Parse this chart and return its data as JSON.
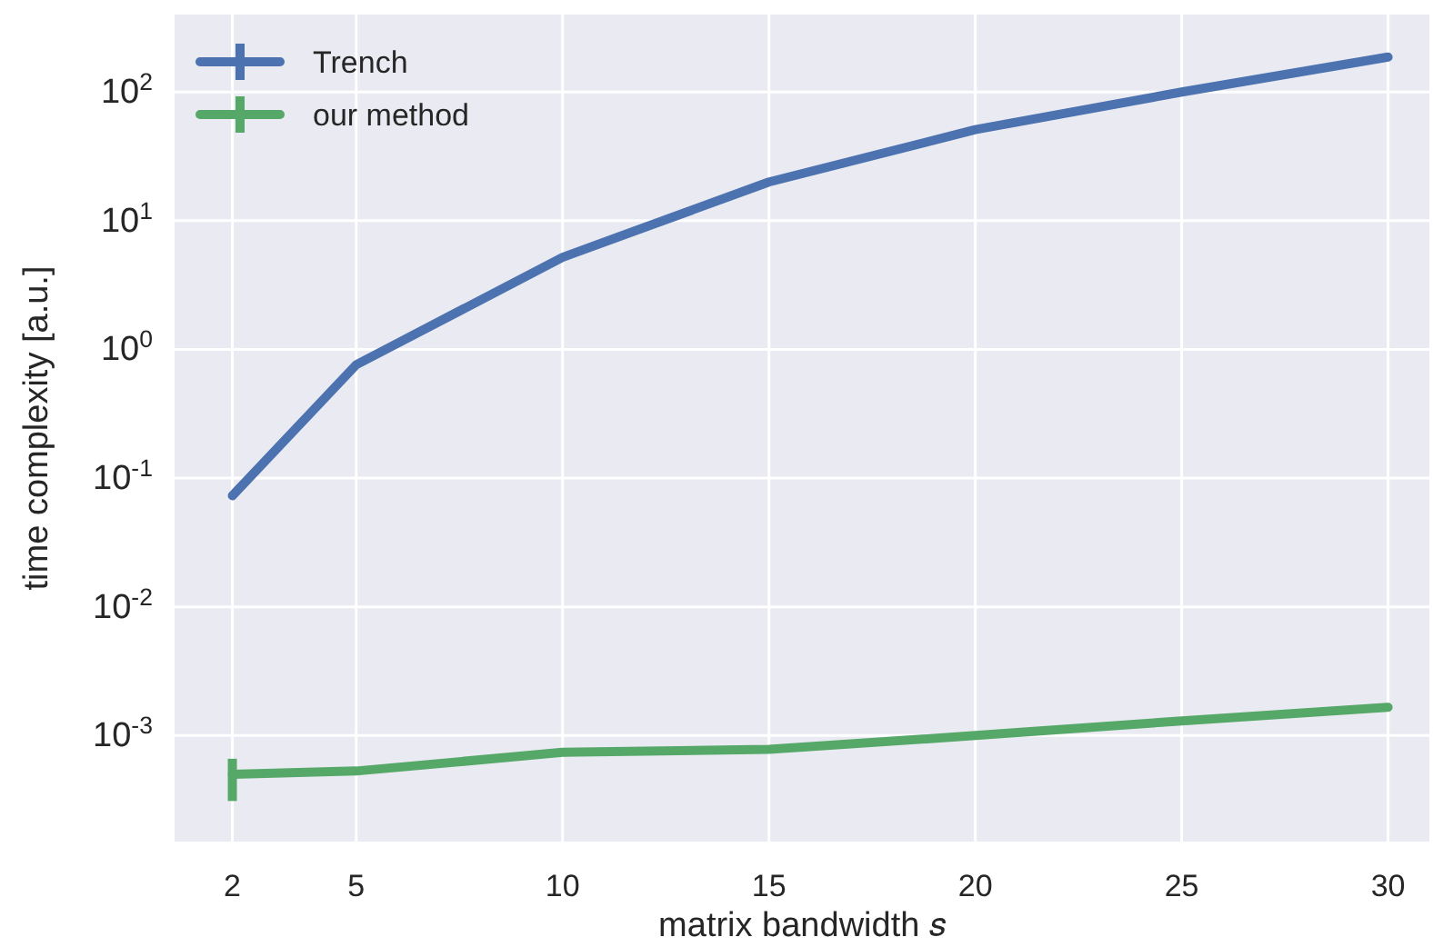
{
  "chart_data": {
    "type": "line",
    "xlabel": "matrix bandwidth 𝑠",
    "ylabel": "time complexity [a.u.]",
    "x": [
      2,
      5,
      10,
      15,
      20,
      25,
      30
    ],
    "series": [
      {
        "name": "Trench",
        "color": "#4c72b0",
        "values": [
          0.073,
          0.76,
          5.2,
          20,
          51,
          100,
          187
        ]
      },
      {
        "name": "our method",
        "color": "#55a868",
        "values": [
          0.0005,
          0.00053,
          0.00074,
          0.00078,
          0.001,
          0.0013,
          0.00166
        ],
        "errors": [
          [
            0.00031,
            0.00066
          ],
          null,
          [
            0.00069,
            0.0008
          ],
          null,
          null,
          null,
          null
        ]
      }
    ],
    "log": "y",
    "xlim": [
      0.6,
      31
    ],
    "ylim": [
      0.00015,
      400
    ],
    "xticks": [
      2,
      5,
      10,
      15,
      20,
      25,
      30
    ],
    "yticks": [
      {
        "value": 0.001,
        "label": "10$^{-3}$"
      },
      {
        "value": 0.01,
        "label": "10$^{-2}$"
      },
      {
        "value": 0.1,
        "label": "10$^{-1}$"
      },
      {
        "value": 1,
        "label": "10$^{0}$"
      },
      {
        "value": 10,
        "label": "10$^{1}$"
      },
      {
        "value": 100,
        "label": "10$^{2}$"
      }
    ],
    "grid": true,
    "legend": "top left",
    "marker": "none",
    "line_style": "solid"
  }
}
